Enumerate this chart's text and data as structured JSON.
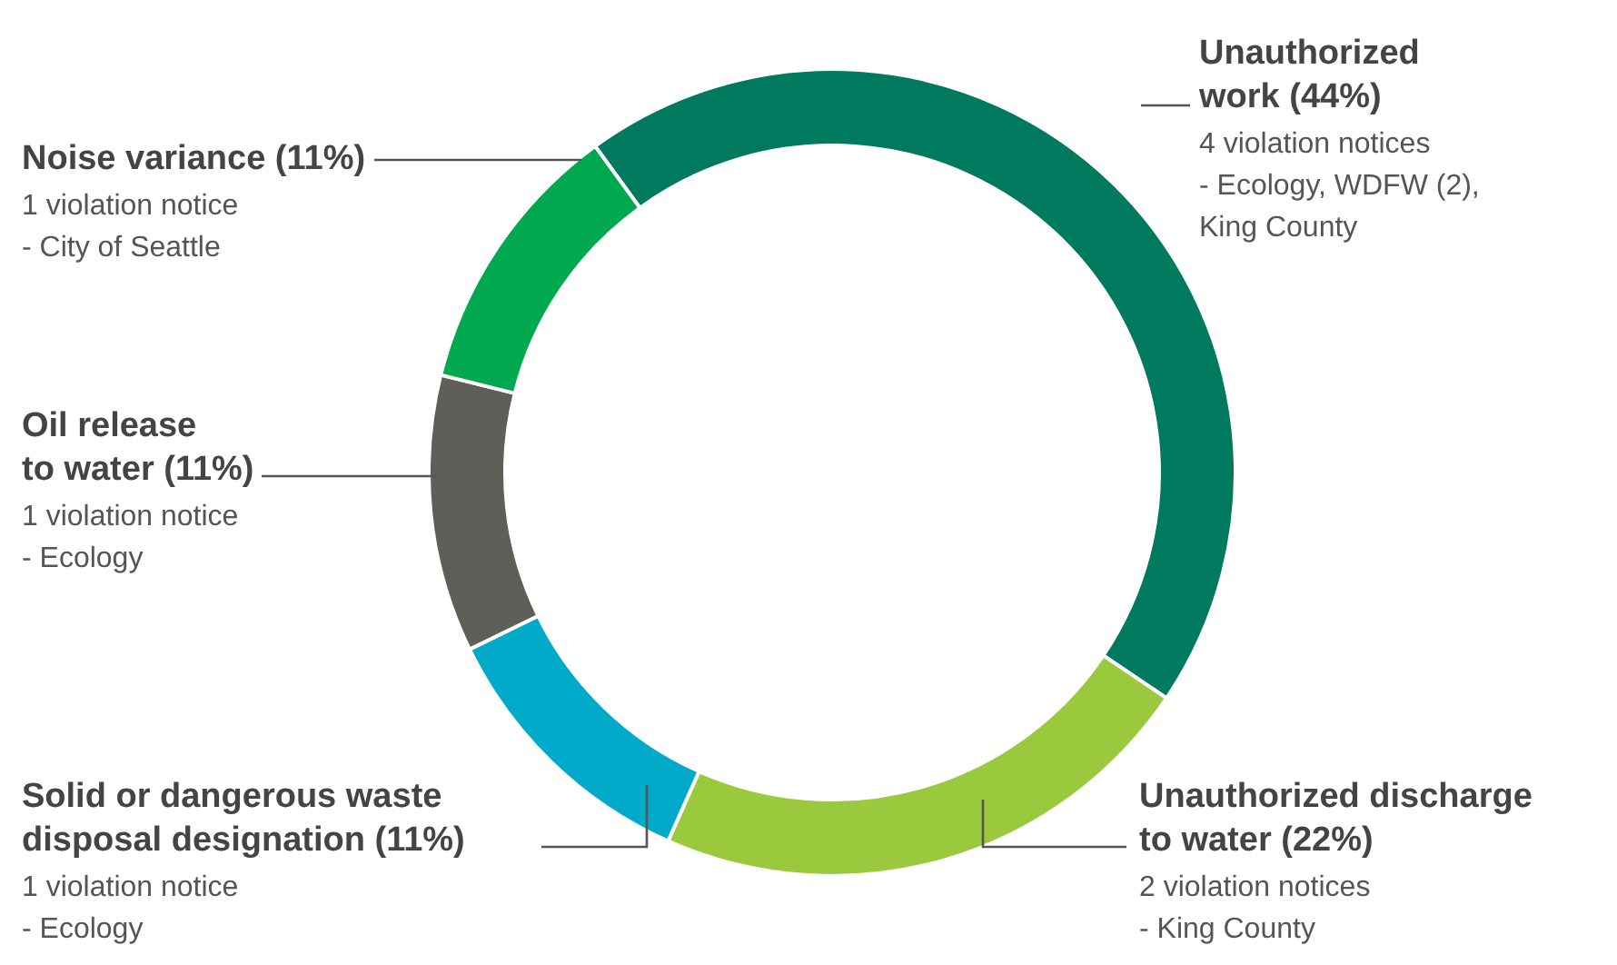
{
  "chart_data": {
    "type": "donut",
    "categories": [
      "Unauthorized work (44%)",
      "Unauthorized discharge to water (22%)",
      "Solid or dangerous waste disposal designation (11%)",
      "Oil release to water (11%)",
      "Noise variance (11%)"
    ],
    "values": [
      44,
      22,
      11,
      11,
      11
    ],
    "colors": [
      "#007a5e",
      "#9ac93d",
      "#00aac8",
      "#5f5e59",
      "#00a94f"
    ],
    "annotations": [
      "4 violation notices",
      "- Ecology, WDFW (2), King County",
      "2 violation notices",
      "- King County",
      "1 violation notice",
      "- Ecology",
      "1 violation notice",
      "- Ecology",
      "1 violation notice",
      "- City of Seattle"
    ]
  }
}
